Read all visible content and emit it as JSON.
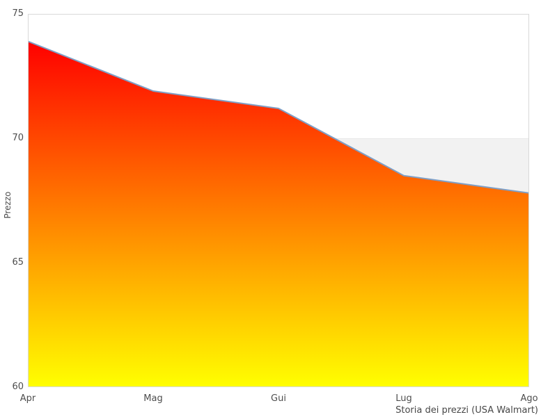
{
  "chart_data": {
    "type": "area",
    "categories": [
      "Apr",
      "Mag",
      "Gui",
      "Lug",
      "Ago"
    ],
    "values": [
      73.9,
      71.9,
      71.2,
      68.5,
      67.8
    ],
    "title": "Storia dei prezzi (USA Walmart)",
    "xlabel": "",
    "ylabel": "Prezzo",
    "ylim": [
      60,
      75
    ],
    "y_ticks": [
      75,
      70,
      65,
      60
    ],
    "grid": false,
    "legend": "none",
    "band": {
      "from": 60,
      "to": 70
    },
    "colors": {
      "line": "#7f9fc6",
      "area_gradient_top": "#ff0000",
      "area_gradient_bottom": "#ffff00",
      "plot_border": "#d9d9d9",
      "band_fill": "#f2f2f2",
      "band_edge": "#e7e7e7",
      "text": "#4d4d4d",
      "background": "#ffffff"
    }
  },
  "labels": {
    "y_axis_title": "Prezzo",
    "caption": "Storia dei prezzi (USA Walmart)"
  }
}
